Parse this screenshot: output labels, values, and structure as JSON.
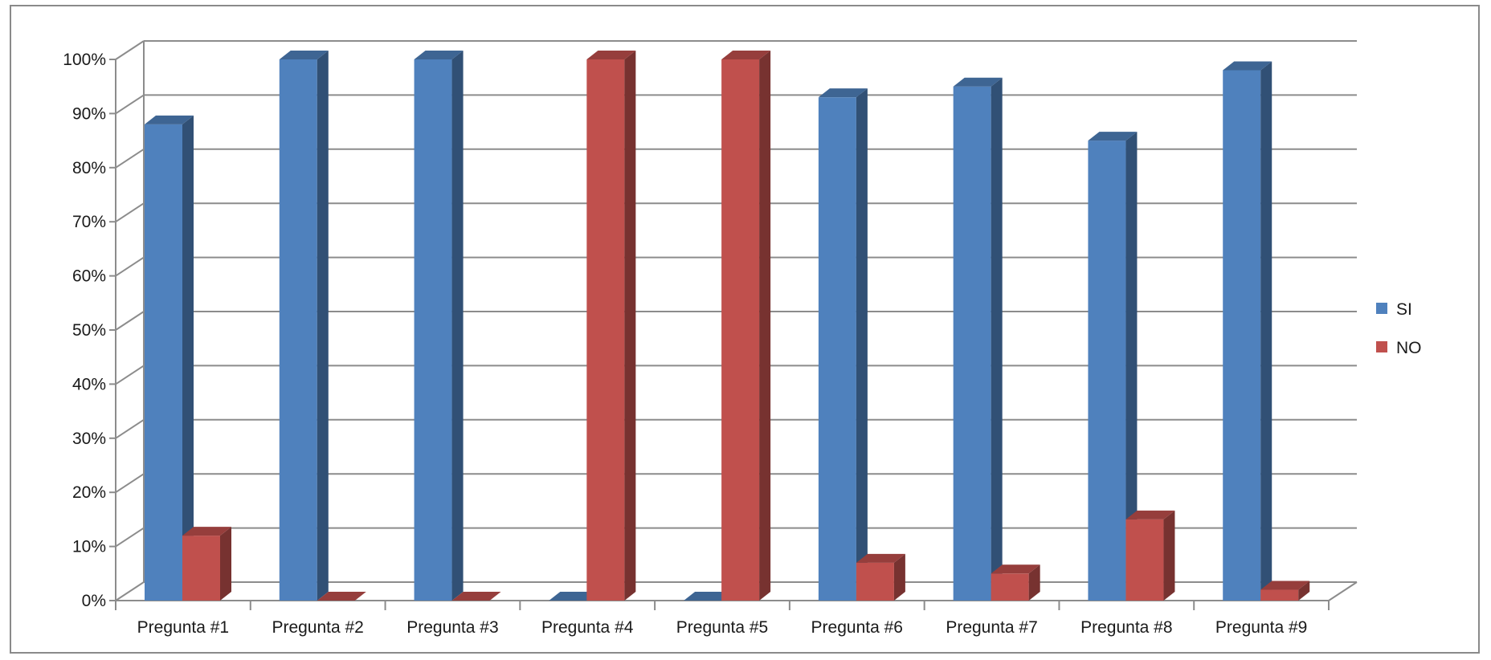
{
  "chart_data": {
    "type": "bar",
    "title": "",
    "xlabel": "",
    "ylabel": "",
    "ylim": [
      0,
      100
    ],
    "y_ticks": [
      "0%",
      "10%",
      "20%",
      "30%",
      "40%",
      "50%",
      "60%",
      "70%",
      "80%",
      "90%",
      "100%"
    ],
    "categories": [
      "Pregunta #1",
      "Pregunta #2",
      "Pregunta #3",
      "Pregunta #4",
      "Pregunta #5",
      "Pregunta #6",
      "Pregunta #7",
      "Pregunta #8",
      "Pregunta #9"
    ],
    "series": [
      {
        "name": "SI",
        "values": [
          88,
          100,
          100,
          0,
          0,
          93,
          95,
          85,
          98
        ],
        "color": "#4f81bd"
      },
      {
        "name": "NO",
        "values": [
          12,
          0,
          0,
          100,
          100,
          7,
          5,
          15,
          2
        ],
        "color": "#c0504d"
      }
    ],
    "grid": true,
    "legend_position": "right",
    "style": "3d-clustered-column"
  }
}
